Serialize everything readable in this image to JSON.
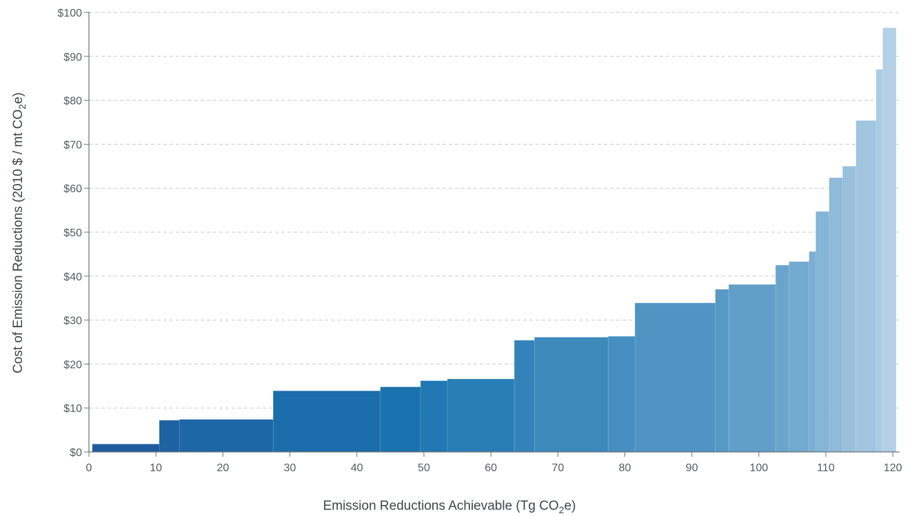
{
  "chart_data": {
    "type": "bar",
    "subtype": "marginal-abatement-cost-curve",
    "xlabel": {
      "pre": "Emission Reductions Achievable (Tg CO",
      "sub": "2",
      "post": "e)"
    },
    "ylabel": {
      "pre": "Cost of Emission Reductions (2010 $ / mt CO",
      "sub": "2",
      "post": "e)"
    },
    "xlim": [
      0,
      121
    ],
    "ylim": [
      0,
      100
    ],
    "x_ticks": [
      0,
      10,
      20,
      30,
      40,
      50,
      60,
      70,
      80,
      90,
      100,
      110,
      120
    ],
    "x_tick_labels": [
      "0",
      "10",
      "20",
      "30",
      "40",
      "50",
      "60",
      "70",
      "80",
      "90",
      "100",
      "110",
      "120"
    ],
    "y_ticks": [
      0,
      10,
      20,
      30,
      40,
      50,
      60,
      70,
      80,
      90,
      100
    ],
    "y_tick_labels": [
      "$0",
      "$10",
      "$20",
      "$30",
      "$40",
      "$50",
      "$60",
      "$70",
      "$80",
      "$90",
      "$100"
    ],
    "grid": "horizontal-dashed",
    "colors": {
      "dark": "#1f5c9e",
      "mid": "#1a74b0",
      "light": "#b3d0e6",
      "axis": "#6b6f74",
      "grid": "#c4c7ca"
    },
    "steps": [
      {
        "x0": 0.5,
        "x1": 10.5,
        "value": 1.8
      },
      {
        "x0": 10.5,
        "x1": 13.5,
        "value": 7.2
      },
      {
        "x0": 13.5,
        "x1": 27.5,
        "value": 7.4
      },
      {
        "x0": 27.5,
        "x1": 43.5,
        "value": 13.9
      },
      {
        "x0": 43.5,
        "x1": 49.5,
        "value": 14.8
      },
      {
        "x0": 49.5,
        "x1": 53.5,
        "value": 16.2
      },
      {
        "x0": 53.5,
        "x1": 63.5,
        "value": 16.6
      },
      {
        "x0": 63.5,
        "x1": 66.5,
        "value": 25.4
      },
      {
        "x0": 66.5,
        "x1": 77.5,
        "value": 26.1
      },
      {
        "x0": 77.5,
        "x1": 81.5,
        "value": 26.3
      },
      {
        "x0": 81.5,
        "x1": 93.5,
        "value": 33.9
      },
      {
        "x0": 93.5,
        "x1": 95.5,
        "value": 37.0
      },
      {
        "x0": 95.5,
        "x1": 102.5,
        "value": 38.1
      },
      {
        "x0": 102.5,
        "x1": 104.5,
        "value": 42.5
      },
      {
        "x0": 104.5,
        "x1": 107.5,
        "value": 43.3
      },
      {
        "x0": 107.5,
        "x1": 108.5,
        "value": 45.6
      },
      {
        "x0": 108.5,
        "x1": 110.5,
        "value": 54.7
      },
      {
        "x0": 110.5,
        "x1": 112.5,
        "value": 62.4
      },
      {
        "x0": 112.5,
        "x1": 114.5,
        "value": 65.0
      },
      {
        "x0": 114.5,
        "x1": 117.5,
        "value": 75.4
      },
      {
        "x0": 117.5,
        "x1": 118.5,
        "value": 87.0
      },
      {
        "x0": 118.5,
        "x1": 120.5,
        "value": 96.5
      }
    ]
  }
}
